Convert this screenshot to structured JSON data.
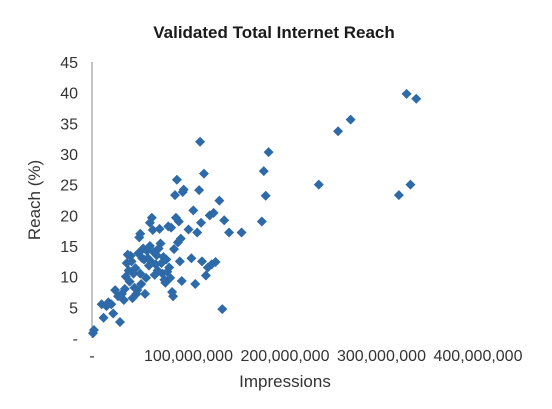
{
  "chart_data": {
    "type": "scatter",
    "title": "Validated Total Internet Reach",
    "xlabel": "Impressions",
    "ylabel": "Reach (%)",
    "xlim": [
      0,
      400000000
    ],
    "ylim": [
      0,
      45
    ],
    "x_ticks": [
      0,
      100000000,
      200000000,
      300000000,
      400000000
    ],
    "x_tick_labels": [
      "-",
      "100,000,000",
      "200,000,000",
      "300,000,000",
      "400,000,000"
    ],
    "y_ticks": [
      0,
      5,
      10,
      15,
      20,
      25,
      30,
      35,
      40,
      45
    ],
    "y_tick_labels": [
      "-",
      "5",
      "10",
      "15",
      "20",
      "25",
      "30",
      "35",
      "40",
      "45"
    ],
    "grid": false,
    "marker": "diamond",
    "color": "#2e6aa8",
    "points": [
      [
        1000000,
        0.8
      ],
      [
        2000000,
        1.3
      ],
      [
        10000000,
        5.5
      ],
      [
        12000000,
        3.3
      ],
      [
        15000000,
        5.2
      ],
      [
        17000000,
        5.8
      ],
      [
        20000000,
        5.5
      ],
      [
        22000000,
        4.0
      ],
      [
        24000000,
        7.8
      ],
      [
        27000000,
        6.8
      ],
      [
        29000000,
        2.6
      ],
      [
        31000000,
        7.2
      ],
      [
        33000000,
        6.2
      ],
      [
        34000000,
        8.0
      ],
      [
        35000000,
        10.0
      ],
      [
        36000000,
        12.2
      ],
      [
        37000000,
        13.6
      ],
      [
        38000000,
        11.0
      ],
      [
        39000000,
        9.2
      ],
      [
        40000000,
        13.4
      ],
      [
        41000000,
        12.5
      ],
      [
        42000000,
        6.5
      ],
      [
        43000000,
        10.5
      ],
      [
        44000000,
        8.2
      ],
      [
        45000000,
        11.4
      ],
      [
        46000000,
        7.2
      ],
      [
        47000000,
        7.8
      ],
      [
        48000000,
        13.8
      ],
      [
        49000000,
        16.4
      ],
      [
        50000000,
        10.5
      ],
      [
        50000000,
        17.0
      ],
      [
        51000000,
        8.8
      ],
      [
        52000000,
        13.0
      ],
      [
        53000000,
        14.6
      ],
      [
        54000000,
        12.8
      ],
      [
        55000000,
        7.2
      ],
      [
        56000000,
        9.8
      ],
      [
        57000000,
        14.2
      ],
      [
        58000000,
        13.0
      ],
      [
        59000000,
        11.8
      ],
      [
        60000000,
        15.0
      ],
      [
        60000000,
        18.8
      ],
      [
        61000000,
        12.5
      ],
      [
        62000000,
        19.6
      ],
      [
        63000000,
        17.6
      ],
      [
        64000000,
        14.0
      ],
      [
        65000000,
        10.3
      ],
      [
        66000000,
        12.0
      ],
      [
        67000000,
        13.5
      ],
      [
        68000000,
        11.0
      ],
      [
        69000000,
        14.6
      ],
      [
        70000000,
        17.8
      ],
      [
        71000000,
        15.4
      ],
      [
        72000000,
        12.2
      ],
      [
        73000000,
        10.5
      ],
      [
        74000000,
        13.2
      ],
      [
        75000000,
        9.5
      ],
      [
        76000000,
        9.0
      ],
      [
        77000000,
        12.8
      ],
      [
        78000000,
        10.8
      ],
      [
        79000000,
        18.2
      ],
      [
        80000000,
        11.5
      ],
      [
        81000000,
        9.8
      ],
      [
        82000000,
        18.0
      ],
      [
        83000000,
        7.5
      ],
      [
        84000000,
        6.8
      ],
      [
        85000000,
        14.5
      ],
      [
        86000000,
        23.3
      ],
      [
        87000000,
        19.6
      ],
      [
        88000000,
        25.8
      ],
      [
        89000000,
        15.6
      ],
      [
        90000000,
        19.0
      ],
      [
        91000000,
        12.5
      ],
      [
        92000000,
        16.2
      ],
      [
        93000000,
        9.3
      ],
      [
        94000000,
        23.8
      ],
      [
        95000000,
        24.2
      ],
      [
        100000000,
        17.7
      ],
      [
        103000000,
        13.0
      ],
      [
        105000000,
        20.8
      ],
      [
        107000000,
        8.8
      ],
      [
        109000000,
        17.2
      ],
      [
        111000000,
        24.1
      ],
      [
        112000000,
        32.0
      ],
      [
        113000000,
        18.8
      ],
      [
        114000000,
        12.5
      ],
      [
        116000000,
        26.8
      ],
      [
        118000000,
        10.2
      ],
      [
        120000000,
        11.5
      ],
      [
        122000000,
        20.0
      ],
      [
        124000000,
        12.0
      ],
      [
        126000000,
        20.4
      ],
      [
        128000000,
        12.4
      ],
      [
        132000000,
        22.4
      ],
      [
        135000000,
        4.7
      ],
      [
        137000000,
        19.2
      ],
      [
        142000000,
        17.2
      ],
      [
        155000000,
        17.2
      ],
      [
        176000000,
        19.0
      ],
      [
        178000000,
        27.2
      ],
      [
        180000000,
        23.2
      ],
      [
        183000000,
        30.3
      ],
      [
        235000000,
        25.0
      ],
      [
        255000000,
        33.7
      ],
      [
        268000000,
        35.6
      ],
      [
        318000000,
        23.3
      ],
      [
        326000000,
        39.8
      ],
      [
        330000000,
        25.0
      ],
      [
        336000000,
        39.0
      ]
    ]
  }
}
